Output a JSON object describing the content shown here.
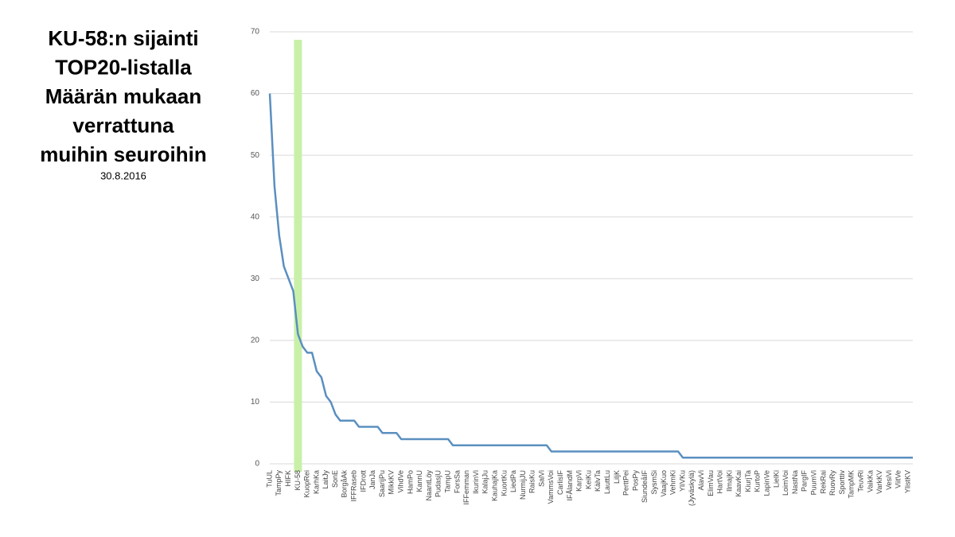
{
  "chart_data": {
    "type": "line",
    "title": [
      "KU-58:n sijainti",
      "TOP20-listalla",
      "Määrän mukaan",
      "verrattuna",
      "muihin seuroihin"
    ],
    "subtitle": "30.8.2016",
    "categories": [
      "TuUL",
      null,
      "TampPy",
      null,
      "HIFK",
      null,
      "KU-58",
      null,
      "KuopRei",
      null,
      "KarhKa",
      null,
      "LaitJy",
      null,
      "SonE",
      null,
      "BorgåAk",
      null,
      "IFFRaseb",
      null,
      "IFDrott",
      null,
      "JanJa",
      null,
      "SaarijPu",
      null,
      "MikkKV",
      null,
      "VihdVe",
      null,
      "HamPo",
      null,
      "KannU",
      null,
      "NaantLöy",
      null,
      "PudasjU",
      null,
      "TampU",
      null,
      "ForsSa",
      null,
      "IFFemman",
      null,
      "IkurinVi",
      null,
      "KalajJu",
      null,
      "KauhajKa",
      null,
      "KuortKu",
      null,
      "LiedPa",
      null,
      "NurmijJU",
      null,
      "RaisKu",
      null,
      "SalVi",
      null,
      "VammsVoi",
      null,
      "CarlisIF",
      null,
      "IFÅlandM",
      null,
      "KarpVi",
      null,
      "KeiKu",
      null,
      "KälvTa",
      null,
      "LauttLu",
      null,
      "LiljK",
      null,
      "PerttPei",
      null,
      "PosPy",
      null,
      "SiundeåIF",
      null,
      "SysmSi",
      null,
      "VaajKuo",
      null,
      "VehmKi",
      null,
      "YliVKu",
      null,
      "(Jyväskylä)",
      null,
      "AlavVi",
      null,
      "ElimVau",
      null,
      "HartVoi",
      null,
      "IlmajKi",
      null,
      "KaavKai",
      null,
      "KiurjTa",
      null,
      "KurtoP",
      null,
      "LapinVe",
      null,
      "LielKi",
      null,
      "LoimVoi",
      null,
      "NastNa",
      null,
      "PargIF",
      null,
      "PuumVi",
      null,
      "RekRai",
      null,
      "RuovRy",
      null,
      "Sporttiv",
      null,
      "TampMK",
      null,
      "TeuvRi",
      null,
      "VaikKa",
      null,
      "VarkKV",
      null,
      "VesiVi",
      null,
      "ViitVe",
      null,
      "YlistKV",
      null
    ],
    "values": [
      60,
      45,
      37,
      32,
      30,
      28,
      21,
      19,
      18,
      18,
      15,
      14,
      11,
      10,
      8,
      7,
      7,
      7,
      7,
      6,
      6,
      6,
      6,
      6,
      5,
      5,
      5,
      5,
      4,
      4,
      4,
      4,
      4,
      4,
      4,
      4,
      4,
      4,
      4,
      3,
      3,
      3,
      3,
      3,
      3,
      3,
      3,
      3,
      3,
      3,
      3,
      3,
      3,
      3,
      3,
      3,
      3,
      3,
      3,
      3,
      2,
      2,
      2,
      2,
      2,
      2,
      2,
      2,
      2,
      2,
      2,
      2,
      2,
      2,
      2,
      2,
      2,
      2,
      2,
      2,
      2,
      2,
      2,
      2,
      2,
      2,
      2,
      2,
      1,
      1,
      1,
      1,
      1,
      1,
      1,
      1,
      1,
      1,
      1,
      1,
      1,
      1,
      1,
      1,
      1,
      1,
      1,
      1,
      1,
      1,
      1,
      1,
      1,
      1,
      1,
      1,
      1,
      1,
      1,
      1,
      1,
      1,
      1,
      1,
      1,
      1,
      1,
      1,
      1,
      1,
      1,
      1,
      1,
      1,
      1,
      1,
      1,
      1
    ],
    "color": "#5b8fc0",
    "highlight": "KU-58",
    "highlight_color": "#c9f0a8",
    "ylim": [
      0,
      70
    ],
    "yticks": [
      0,
      10,
      20,
      30,
      40,
      50,
      60,
      70
    ],
    "grid": true
  }
}
